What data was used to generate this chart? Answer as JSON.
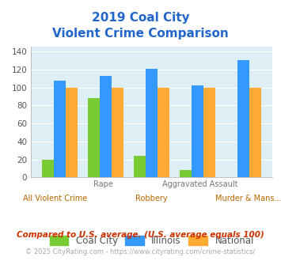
{
  "title_line1": "2019 Coal City",
  "title_line2": "Violent Crime Comparison",
  "categories": [
    "All Violent Crime",
    "Rape",
    "Robbery",
    "Aggravated Assault",
    "Murder & Mans..."
  ],
  "coal_city": [
    20,
    88,
    24,
    8,
    0
  ],
  "illinois": [
    108,
    113,
    121,
    102,
    130
  ],
  "national": [
    100,
    100,
    100,
    100,
    100
  ],
  "colors": {
    "coal_city": "#77cc33",
    "illinois": "#3399ff",
    "national": "#ffaa33"
  },
  "ylim": [
    0,
    145
  ],
  "yticks": [
    0,
    20,
    40,
    60,
    80,
    100,
    120,
    140
  ],
  "background_color": "#ddeef5",
  "title_color": "#2266cc",
  "legend_labels": [
    "Coal City",
    "Illinois",
    "National"
  ],
  "footnote1": "Compared to U.S. average. (U.S. average equals 100)",
  "footnote2": "© 2025 CityRating.com - https://www.cityrating.com/crime-statistics/",
  "footnote1_color": "#cc3300",
  "footnote2_color": "#aaaaaa"
}
